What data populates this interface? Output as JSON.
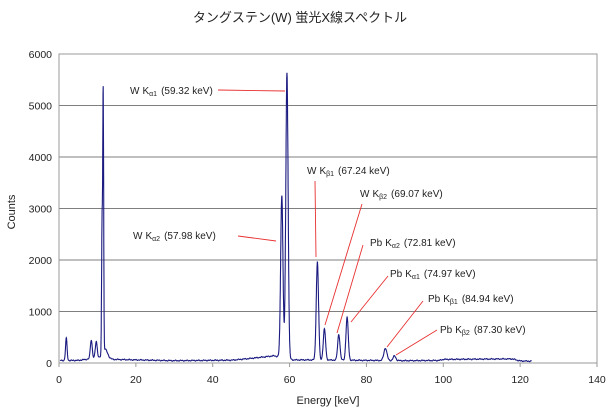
{
  "chart_data": {
    "type": "line",
    "title": "タングステン(W) 蛍光X線スペクトル",
    "xlabel": "Energy [keV]",
    "ylabel": "Counts",
    "xlim": [
      0,
      140
    ],
    "ylim": [
      0,
      6000
    ],
    "x_ticks": [
      "0",
      "20",
      "40",
      "60",
      "80",
      "100",
      "120",
      "140"
    ],
    "y_ticks": [
      "0",
      "1000",
      "2000",
      "3000",
      "4000",
      "5000",
      "6000"
    ],
    "grid": "horizontal",
    "legend": "none",
    "series_color": "#1a1a80",
    "annotation_color": "#e83030",
    "baseline": [
      [
        0.3,
        50
      ],
      [
        5,
        50
      ],
      [
        12,
        120
      ],
      [
        14,
        70
      ],
      [
        30,
        45
      ],
      [
        45,
        55
      ],
      [
        50,
        90
      ],
      [
        56,
        140
      ],
      [
        61,
        60
      ],
      [
        66,
        60
      ],
      [
        90,
        45
      ],
      [
        99,
        50
      ],
      [
        100,
        70
      ],
      [
        118,
        80
      ],
      [
        120,
        40
      ],
      [
        123,
        35
      ]
    ],
    "peaks": [
      {
        "energy": 1.9,
        "counts": 430,
        "width": 0.2
      },
      {
        "energy": 8.4,
        "counts": 360,
        "width": 0.25
      },
      {
        "energy": 9.7,
        "counts": 320,
        "width": 0.25
      },
      {
        "energy": 11.2,
        "counts": 2500,
        "width": 0.12
      },
      {
        "energy": 11.5,
        "counts": 5050,
        "width": 0.12
      },
      {
        "energy": 12.0,
        "counts": 150,
        "width": 0.6
      },
      {
        "energy": 57.98,
        "counts": 3150,
        "width": 0.3
      },
      {
        "energy": 59.32,
        "counts": 5550,
        "width": 0.3
      },
      {
        "energy": 67.24,
        "counts": 1900,
        "width": 0.3
      },
      {
        "energy": 69.07,
        "counts": 600,
        "width": 0.3
      },
      {
        "energy": 72.81,
        "counts": 500,
        "width": 0.3
      },
      {
        "energy": 74.97,
        "counts": 830,
        "width": 0.3
      },
      {
        "energy": 84.94,
        "counts": 240,
        "width": 0.4
      },
      {
        "energy": 87.3,
        "counts": 90,
        "width": 0.35
      }
    ],
    "annotations": [
      {
        "element": "W",
        "line": "K",
        "sub": "α1",
        "energy": "(59.32 keV)"
      },
      {
        "element": "W",
        "line": "K",
        "sub": "α2",
        "energy": "(57.98 keV)"
      },
      {
        "element": "W",
        "line": "K",
        "sub": "β1",
        "energy": "(67.24 keV)"
      },
      {
        "element": "W",
        "line": "K",
        "sub": "β2",
        "energy": "(69.07 keV)"
      },
      {
        "element": "Pb",
        "line": "K",
        "sub": "α2",
        "energy": "(72.81 keV)"
      },
      {
        "element": "Pb",
        "line": "K",
        "sub": "α1",
        "energy": "(74.97 keV)"
      },
      {
        "element": "Pb",
        "line": "K",
        "sub": "β1",
        "energy": "(84.94 keV)"
      },
      {
        "element": "Pb",
        "line": "K",
        "sub": "β2",
        "energy": "(87.30 keV)"
      }
    ]
  }
}
